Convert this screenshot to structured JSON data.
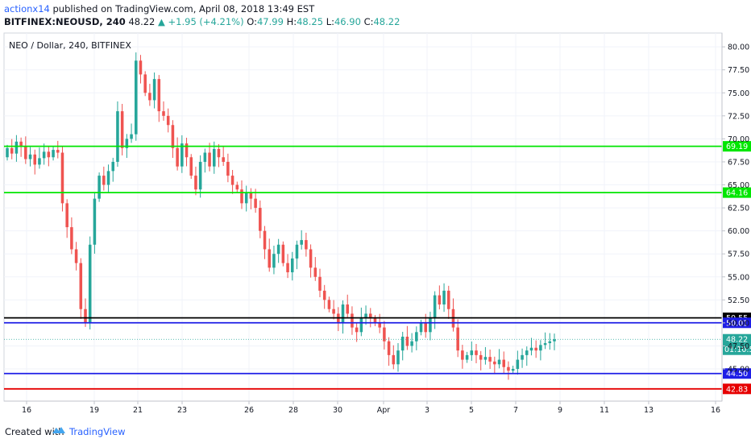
{
  "header": {
    "author": "actionx14",
    "published_text": " published on TradingView.com, April 08, 2018 13:49 EST",
    "symbol": "BITFINEX:NEOUSD, 240",
    "last": "48.22",
    "change": "▲ +1.95 (+4.21%)",
    "o_label": "O:",
    "o_value": "47.99",
    "h_label": "H:",
    "h_value": "48.25",
    "l_label": "L:",
    "l_value": "46.90",
    "c_label": "C:",
    "c_value": "48.22"
  },
  "footer": {
    "created_with": "Created with",
    "brand": "TradingView"
  },
  "colors": {
    "up": "#26a69a",
    "down": "#ef5350",
    "accent": "#2962ff"
  },
  "chart_data": {
    "type": "candlestick",
    "title": "NEO / Dollar, 240, BITFINEX",
    "ylim": [
      41.5,
      81.5
    ],
    "y_ticks": [
      "45.00",
      "47.50",
      "50.00",
      "52.50",
      "55.00",
      "57.50",
      "60.00",
      "62.50",
      "65.00",
      "67.50",
      "70.00",
      "72.50",
      "75.00",
      "77.50",
      "80.00"
    ],
    "x_ticks": [
      {
        "label": "16",
        "pos": 33
      },
      {
        "label": "19",
        "pos": 117
      },
      {
        "label": "21",
        "pos": 171
      },
      {
        "label": "23",
        "pos": 226
      },
      {
        "label": "26",
        "pos": 309
      },
      {
        "label": "28",
        "pos": 364
      },
      {
        "label": "30",
        "pos": 419
      },
      {
        "label": "Apr",
        "pos": 476
      },
      {
        "label": "3",
        "pos": 530
      },
      {
        "label": "5",
        "pos": 585
      },
      {
        "label": "7",
        "pos": 640
      },
      {
        "label": "9",
        "pos": 695
      },
      {
        "label": "11",
        "pos": 750
      },
      {
        "label": "13",
        "pos": 805
      },
      {
        "label": "16",
        "pos": 888
      }
    ],
    "levels": [
      {
        "value": 69.19,
        "label": "69.19",
        "color": "#00e600"
      },
      {
        "value": 64.16,
        "label": "64.16",
        "color": "#00e600"
      },
      {
        "value": 50.55,
        "label": "50.55",
        "color": "#000000"
      },
      {
        "value": 50.01,
        "label": "50.01",
        "color": "#1e1ee6"
      },
      {
        "value": 44.5,
        "label": "44.50",
        "color": "#1e1ee6"
      },
      {
        "value": 42.83,
        "label": "42.83",
        "color": "#e60000"
      }
    ],
    "last_price": {
      "value": 48.22,
      "label": "48.22",
      "countdown": "01:10:5"
    },
    "closes": [
      69.0,
      68.4,
      69.7,
      69.2,
      67.8,
      68.3,
      67.2,
      67.9,
      68.6,
      68.0,
      68.8,
      68.5,
      63.0,
      60.4,
      58.0,
      56.5,
      51.5,
      50.0,
      58.5,
      63.5,
      66.0,
      65.0,
      66.5,
      67.5,
      73.0,
      69.0,
      70.0,
      70.5,
      78.5,
      77.0,
      75.0,
      74.2,
      76.5,
      73.0,
      72.5,
      71.5,
      69.0,
      67.0,
      69.5,
      68.0,
      66.0,
      64.5,
      67.5,
      68.5,
      67.0,
      68.9,
      68.0,
      67.5,
      66.0,
      65.0,
      64.5,
      63.0,
      64.2,
      63.5,
      62.5,
      60.0,
      58.0,
      56.0,
      57.5,
      58.5,
      56.5,
      55.5,
      57.0,
      58.5,
      59.0,
      58.0,
      56.0,
      55.0,
      53.5,
      52.5,
      51.5,
      51.0,
      50.0,
      52.0,
      51.0,
      49.5,
      49.0,
      50.5,
      51.0,
      50.5,
      50.0,
      49.5,
      48.0,
      46.5,
      45.5,
      47.0,
      48.5,
      47.5,
      48.0,
      49.0,
      50.0,
      49.0,
      50.5,
      53.0,
      52.0,
      53.5,
      51.5,
      49.5,
      47.0,
      46.0,
      46.5,
      47.0,
      46.5,
      46.0,
      46.3,
      45.8,
      45.5,
      46.0,
      45.2,
      44.8,
      45.0,
      46.0,
      46.5,
      47.0,
      47.3,
      47.0,
      47.6,
      47.8,
      48.0,
      48.22
    ],
    "ohlc_open": 68.0
  }
}
